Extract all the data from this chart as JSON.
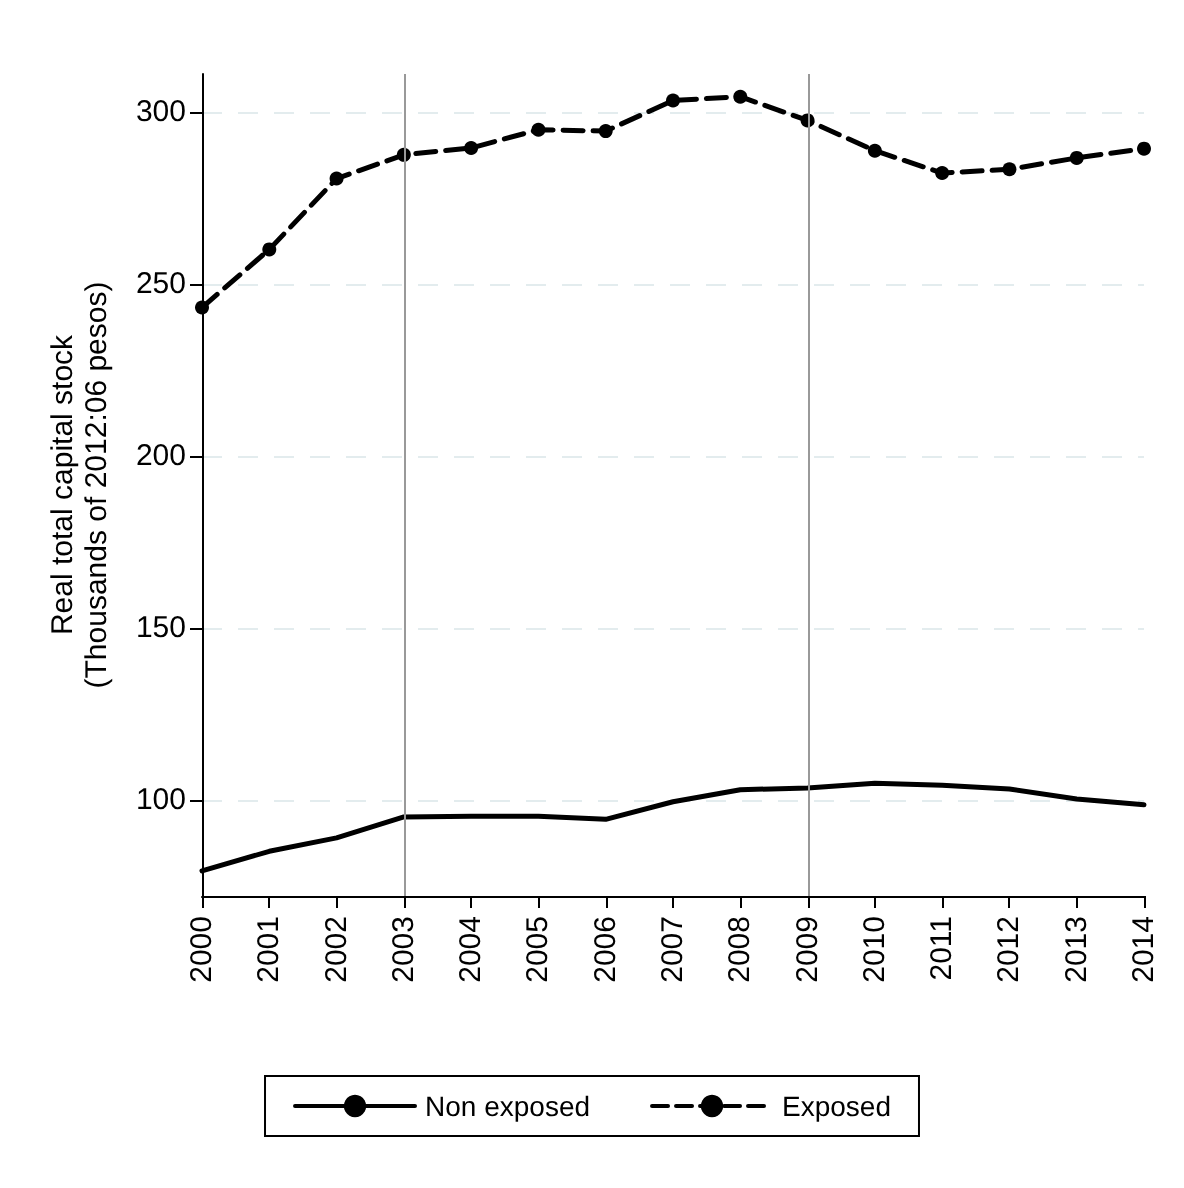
{
  "chart_data": {
    "type": "line",
    "ylabel": "Real total capital stock\n(Thousands of 2012:06 pesos)",
    "categories": [
      "2000",
      "2001",
      "2002",
      "2003",
      "2004",
      "2005",
      "2006",
      "2007",
      "2008",
      "2009",
      "2010",
      "2011",
      "2012",
      "2013",
      "2014"
    ],
    "series": [
      {
        "name": "Non exposed",
        "color": "#000000",
        "line_style": "solid",
        "marker": "none",
        "values": [
          79.3,
          85,
          88.9,
          95,
          95.2,
          95.2,
          94.3,
          99.4,
          102.9,
          103.4,
          104.8,
          104.2,
          103.1,
          100.2,
          98.5
        ]
      },
      {
        "name": "Exposed",
        "color": "#000000",
        "line_style": "dashed",
        "marker": "circle",
        "values": [
          243.1,
          260,
          280.6,
          287.5,
          289.5,
          294.8,
          294.4,
          303.3,
          304.4,
          297.5,
          288.7,
          282.2,
          283.3,
          286.6,
          289.3
        ]
      }
    ],
    "ylim": [
      72,
      311
    ],
    "yticks": [
      100,
      150,
      200,
      250,
      300
    ],
    "grid": "y",
    "legend": "bottom",
    "ref_lines": [
      {
        "axis": "x",
        "value": "2003",
        "color": "#999999"
      },
      {
        "axis": "x",
        "value": "2009",
        "color": "#999999"
      }
    ]
  }
}
